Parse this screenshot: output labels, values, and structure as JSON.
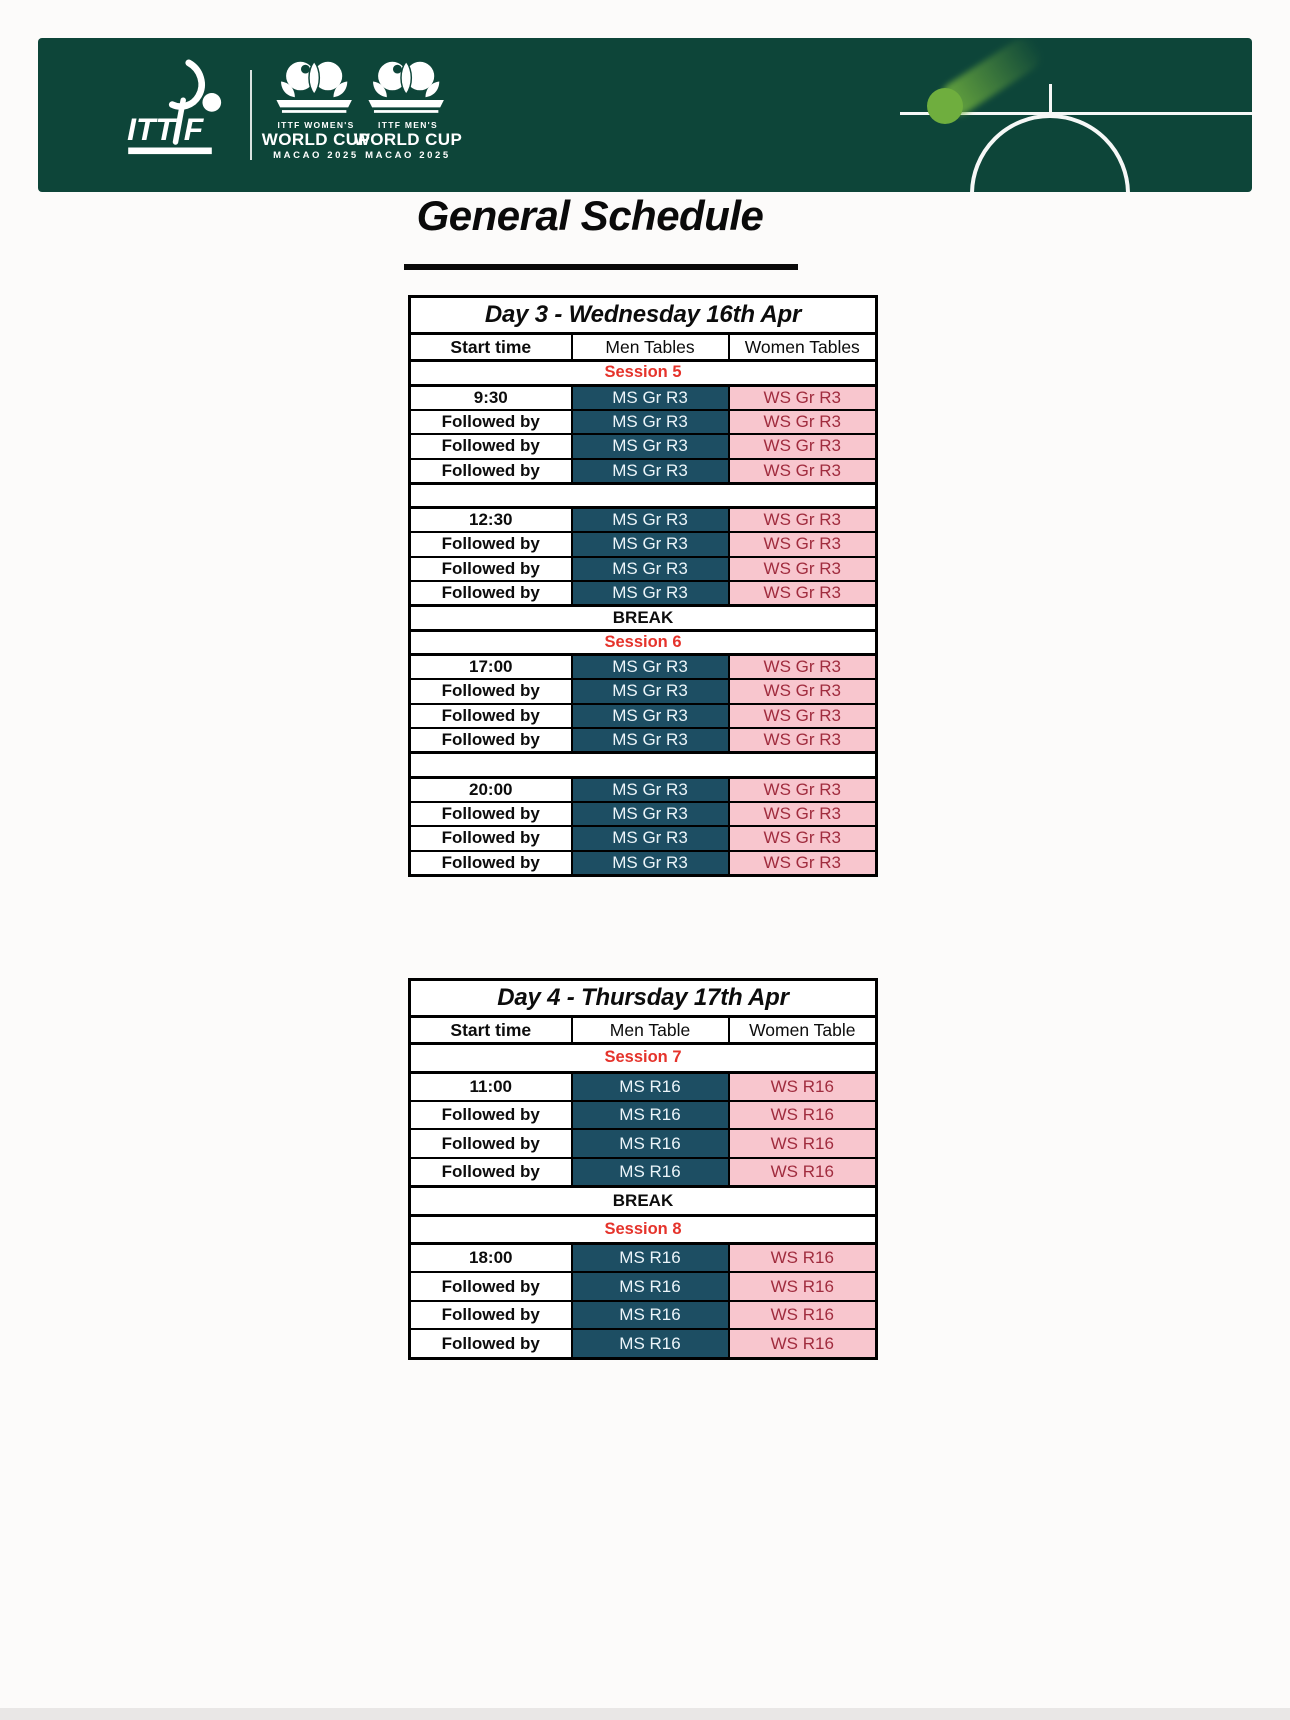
{
  "colors": {
    "banner_green": "#0d4539",
    "ball_green": "#6fae3e",
    "men_cell_bg": "#1d4e63",
    "men_cell_text": "#ecf5fa",
    "women_cell_bg": "#f8c6ce",
    "women_cell_text": "#a02c3e",
    "session_red": "#e5332b"
  },
  "banner": {
    "ittf_wordmark": "ITT F",
    "events": [
      {
        "line1": "ITTF WOMEN'S",
        "line2": "WORLD CUP",
        "line3": "MACAO 2025"
      },
      {
        "line1": "ITTF MEN'S",
        "line2": "WORLD CUP",
        "line3": "MACAO 2025"
      }
    ]
  },
  "page_title": "General Schedule",
  "tables": [
    {
      "title": "Day 3 - Wednesday 16th Apr",
      "columns": [
        "Start time",
        "Men Tables",
        "Women Tables"
      ],
      "rows": [
        {
          "type": "session",
          "label": "Session 5"
        },
        {
          "type": "match",
          "time": "9:30",
          "men": "MS Gr R3",
          "women": "WS Gr R3"
        },
        {
          "type": "match",
          "time": "Followed by",
          "men": "MS Gr R3",
          "women": "WS Gr R3"
        },
        {
          "type": "match",
          "time": "Followed by",
          "men": "MS Gr R3",
          "women": "WS Gr R3"
        },
        {
          "type": "match",
          "time": "Followed by",
          "men": "MS Gr R3",
          "women": "WS Gr R3"
        },
        {
          "type": "spacer"
        },
        {
          "type": "match",
          "time": "12:30",
          "men": "MS Gr R3",
          "women": "WS Gr R3"
        },
        {
          "type": "match",
          "time": "Followed by",
          "men": "MS Gr R3",
          "women": "WS Gr R3"
        },
        {
          "type": "match",
          "time": "Followed by",
          "men": "MS Gr R3",
          "women": "WS Gr R3"
        },
        {
          "type": "match",
          "time": "Followed by",
          "men": "MS Gr R3",
          "women": "WS Gr R3"
        },
        {
          "type": "break",
          "label": "BREAK"
        },
        {
          "type": "session",
          "label": "Session 6"
        },
        {
          "type": "match",
          "time": "17:00",
          "men": "MS Gr R3",
          "women": "WS Gr R3"
        },
        {
          "type": "match",
          "time": "Followed by",
          "men": "MS Gr R3",
          "women": "WS Gr R3"
        },
        {
          "type": "match",
          "time": "Followed by",
          "men": "MS Gr R3",
          "women": "WS Gr R3"
        },
        {
          "type": "match",
          "time": "Followed by",
          "men": "MS Gr R3",
          "women": "WS Gr R3"
        },
        {
          "type": "spacer"
        },
        {
          "type": "match",
          "time": "20:00",
          "men": "MS Gr R3",
          "women": "WS Gr R3"
        },
        {
          "type": "match",
          "time": "Followed by",
          "men": "MS Gr R3",
          "women": "WS Gr R3"
        },
        {
          "type": "match",
          "time": "Followed by",
          "men": "MS Gr R3",
          "women": "WS Gr R3"
        },
        {
          "type": "match",
          "time": "Followed by",
          "men": "MS Gr R3",
          "women": "WS Gr R3"
        }
      ]
    },
    {
      "title": "Day 4 - Thursday 17th Apr",
      "columns": [
        "Start time",
        "Men Table",
        "Women Table"
      ],
      "rows": [
        {
          "type": "session",
          "label": "Session 7"
        },
        {
          "type": "match",
          "time": "11:00",
          "men": "MS R16",
          "women": "WS R16"
        },
        {
          "type": "match",
          "time": "Followed by",
          "men": "MS R16",
          "women": "WS R16"
        },
        {
          "type": "match",
          "time": "Followed by",
          "men": "MS R16",
          "women": "WS R16"
        },
        {
          "type": "match",
          "time": "Followed by",
          "men": "MS R16",
          "women": "WS R16"
        },
        {
          "type": "break",
          "label": "BREAK"
        },
        {
          "type": "session",
          "label": "Session 8"
        },
        {
          "type": "match",
          "time": "18:00",
          "men": "MS R16",
          "women": "WS R16"
        },
        {
          "type": "match",
          "time": "Followed by",
          "men": "MS R16",
          "women": "WS R16"
        },
        {
          "type": "match",
          "time": "Followed by",
          "men": "MS R16",
          "women": "WS R16"
        },
        {
          "type": "match",
          "time": "Followed by",
          "men": "MS R16",
          "women": "WS R16"
        }
      ]
    }
  ]
}
